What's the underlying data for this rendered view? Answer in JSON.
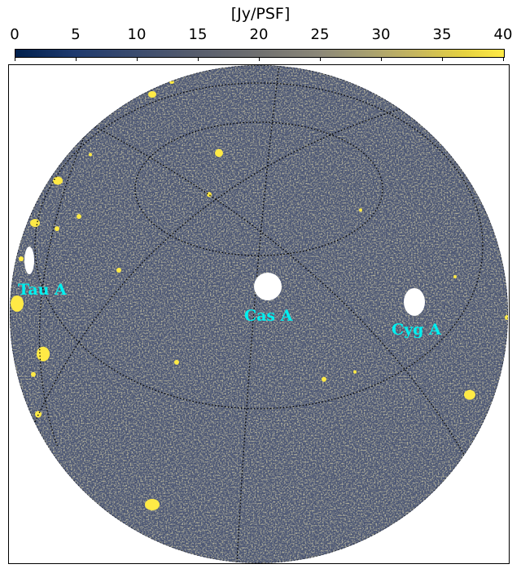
{
  "colorbar": {
    "title": "[Jy/PSF]",
    "ticks": [
      "0",
      "5",
      "10",
      "15",
      "20",
      "25",
      "30",
      "35",
      "40"
    ],
    "range": [
      0,
      40
    ],
    "colormap": "cividis"
  },
  "sky_map": {
    "background_color": "#4a5470",
    "hot_color": "#ffea46",
    "masked_color": "#ffffff",
    "graticule_color": "#000000",
    "sources": [
      {
        "name": "Tau A"
      },
      {
        "name": "Cas A"
      },
      {
        "name": "Cyg A"
      }
    ]
  },
  "colors": {
    "label_color": "#00f0f0"
  }
}
